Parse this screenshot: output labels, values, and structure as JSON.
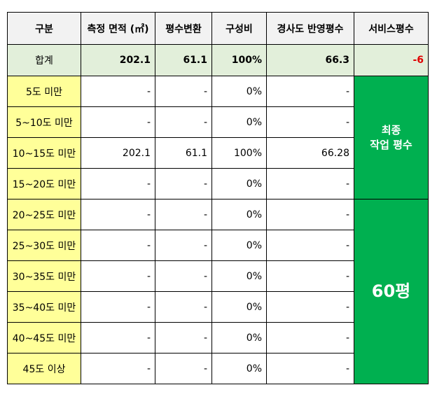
{
  "headers": [
    "구분",
    "측정 면적 (㎡)",
    "평수변환",
    "구성비",
    "경사도 반영평수",
    "서비스평수"
  ],
  "total": {
    "label": "합계",
    "area": "202.1",
    "pyeong": "61.1",
    "ratio": "100%",
    "slope_pyeong": "66.3",
    "service": "-6"
  },
  "rows": [
    {
      "label": "5도 미만",
      "area": "-",
      "pyeong": "-",
      "ratio": "0%",
      "slope_pyeong": "-"
    },
    {
      "label": "5~10도 미만",
      "area": "-",
      "pyeong": "-",
      "ratio": "0%",
      "slope_pyeong": "-"
    },
    {
      "label": "10~15도 미만",
      "area": "202.1",
      "pyeong": "61.1",
      "ratio": "100%",
      "slope_pyeong": "66.28"
    },
    {
      "label": "15~20도 미만",
      "area": "-",
      "pyeong": "-",
      "ratio": "0%",
      "slope_pyeong": "-"
    },
    {
      "label": "20~25도 미만",
      "area": "-",
      "pyeong": "-",
      "ratio": "0%",
      "slope_pyeong": "-"
    },
    {
      "label": "25~30도 미만",
      "area": "-",
      "pyeong": "-",
      "ratio": "0%",
      "slope_pyeong": "-"
    },
    {
      "label": "30~35도 미만",
      "area": "-",
      "pyeong": "-",
      "ratio": "0%",
      "slope_pyeong": "-"
    },
    {
      "label": "35~40도 미만",
      "area": "-",
      "pyeong": "-",
      "ratio": "0%",
      "slope_pyeong": "-"
    },
    {
      "label": "40~45도 미만",
      "area": "-",
      "pyeong": "-",
      "ratio": "0%",
      "slope_pyeong": "-"
    },
    {
      "label": "45도 이상",
      "area": "-",
      "pyeong": "-",
      "ratio": "0%",
      "slope_pyeong": "-"
    }
  ],
  "final": {
    "line1": "최종",
    "line2": "작업 평수",
    "value": "60평"
  },
  "colors": {
    "header_bg": "#f2f2f2",
    "total_bg": "#e2efda",
    "category_bg": "#ffff99",
    "final_bg": "#00b050",
    "negative": "#e00000"
  }
}
